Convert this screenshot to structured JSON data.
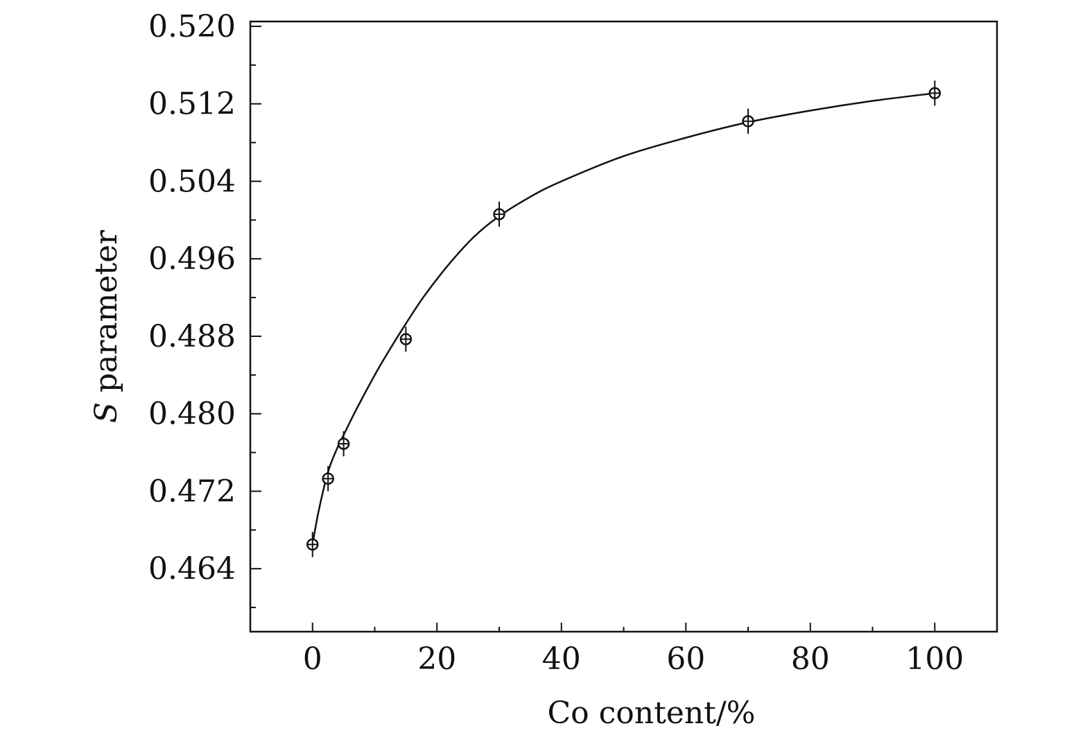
{
  "chart_data": {
    "type": "scatter",
    "title": "",
    "xlabel": "Co content/%",
    "ylabel_symbol": "S",
    "ylabel_rest": " parameter",
    "xlim": [
      -10,
      110
    ],
    "ylim": [
      0.4575,
      0.5205
    ],
    "x_ticks": [
      0,
      20,
      40,
      60,
      80,
      100
    ],
    "x_tick_labels": [
      "0",
      "20",
      "40",
      "60",
      "80",
      "100"
    ],
    "x_minor_step": 10,
    "y_ticks": [
      0.464,
      0.472,
      0.48,
      0.488,
      0.496,
      0.504,
      0.512,
      0.52
    ],
    "y_tick_labels": [
      "0.464",
      "0.472",
      "0.480",
      "0.488",
      "0.496",
      "0.504",
      "0.512",
      "0.520"
    ],
    "y_minor_step": 0.004,
    "grid": false,
    "series": [
      {
        "marker": "circle-plus",
        "x": [
          0,
          2.5,
          5,
          15,
          30,
          70,
          100
        ],
        "y": [
          0.4665,
          0.4733,
          0.4769,
          0.4877,
          0.5006,
          0.5102,
          0.5131
        ],
        "yerr": [
          0.0013,
          0.0013,
          0.0013,
          0.0013,
          0.0013,
          0.0013,
          0.0013
        ]
      }
    ],
    "fit_curve": {
      "x": [
        0,
        1,
        2.5,
        4,
        5,
        7,
        10,
        12,
        15,
        18,
        22,
        26,
        30,
        35,
        40,
        50,
        60,
        70,
        80,
        90,
        100
      ],
      "y": [
        0.4665,
        0.47,
        0.474,
        0.4765,
        0.4778,
        0.4804,
        0.484,
        0.4862,
        0.4893,
        0.4922,
        0.4955,
        0.4983,
        0.5004,
        0.5024,
        0.504,
        0.5066,
        0.5085,
        0.5101,
        0.5113,
        0.5123,
        0.5131
      ]
    }
  }
}
